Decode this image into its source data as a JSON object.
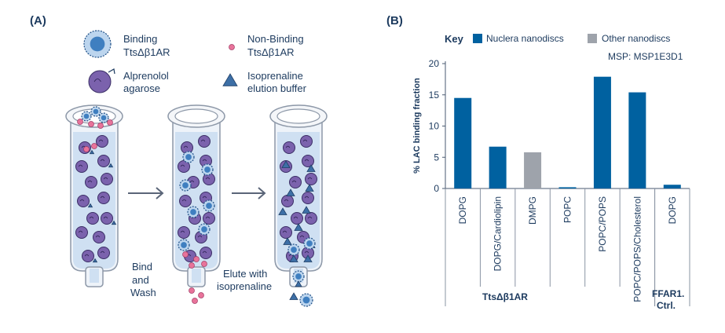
{
  "panel_a": {
    "label": "(A)",
    "legend": {
      "binding": [
        "Binding",
        "TtsΔβ1AR"
      ],
      "non_binding": [
        "Non-Binding",
        "TtsΔβ1AR"
      ],
      "agarose": [
        "Alprenolol",
        "agarose"
      ],
      "elution": [
        "Isoprenaline",
        "elution buffer"
      ]
    },
    "steps": {
      "bind_wash": [
        "Bind",
        "and",
        "Wash"
      ],
      "elute": [
        "Elute with",
        "isoprenaline"
      ]
    },
    "colors": {
      "bead": "#7b62ad",
      "nonbinding": "#e8739a",
      "binding": "#3f7fc0",
      "liquid": "#cfe0f2",
      "triangle": "#3d6fa6"
    }
  },
  "panel_b": {
    "label": "(B)",
    "key_label": "Key",
    "msp_note": "MSP: MSP1E3D1",
    "group_labels": [
      "TtsΔβ1AR",
      "FFAR1.",
      "Ctrl."
    ]
  },
  "chart_data": {
    "type": "bar",
    "ylabel": "% LAC binding fraction",
    "ylim": [
      0,
      20
    ],
    "yticks": [
      0,
      5,
      10,
      15,
      20
    ],
    "categories": [
      "DOPG",
      "DOPG/Cardiolipin",
      "DMPG",
      "POPC",
      "POPC/POPS",
      "POPC/POPS/Cholesterol",
      "DOPG"
    ],
    "values": [
      14.5,
      6.7,
      5.8,
      0.2,
      17.9,
      15.4,
      0.6
    ],
    "bar_series": [
      "Nuclera nanodiscs",
      "Nuclera nanodiscs",
      "Other nanodiscs",
      "Nuclera nanodiscs",
      "Nuclera nanodiscs",
      "Nuclera nanodiscs",
      "Nuclera nanodiscs"
    ],
    "groups": [
      {
        "name": "TtsΔβ1AR",
        "count": 6
      },
      {
        "name": "FFAR1. Ctrl.",
        "count": 1
      }
    ],
    "legend": [
      {
        "name": "Nuclera nanodiscs",
        "color": "#0061a0"
      },
      {
        "name": "Other nanodiscs",
        "color": "#9ea3ab"
      }
    ],
    "legend_placement": "top",
    "grid": false
  }
}
